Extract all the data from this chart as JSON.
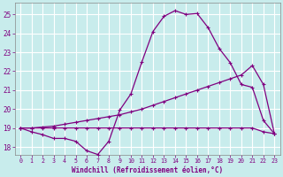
{
  "xlabel": "Windchill (Refroidissement éolien,°C)",
  "bg_color": "#c8ecec",
  "line_color": "#800080",
  "grid_color": "#b0d8d8",
  "xmin": -0.5,
  "xmax": 23.5,
  "ymin": 17.6,
  "ymax": 25.6,
  "yticks": [
    18,
    19,
    20,
    21,
    22,
    23,
    24,
    25
  ],
  "xticks": [
    0,
    1,
    2,
    3,
    4,
    5,
    6,
    7,
    8,
    9,
    10,
    11,
    12,
    13,
    14,
    15,
    16,
    17,
    18,
    19,
    20,
    21,
    22,
    23
  ],
  "line1_x": [
    0,
    1,
    2,
    3,
    4,
    5,
    6,
    7,
    8,
    9,
    10,
    11,
    12,
    13,
    14,
    15,
    16,
    17,
    18,
    19,
    20,
    21,
    22,
    23
  ],
  "line1_y": [
    19.0,
    18.8,
    18.65,
    18.45,
    18.45,
    18.3,
    17.8,
    17.6,
    18.3,
    19.95,
    20.8,
    22.5,
    24.1,
    24.9,
    25.2,
    25.0,
    25.05,
    24.3,
    23.2,
    22.45,
    21.3,
    21.15,
    19.4,
    18.7
  ],
  "line2_x": [
    0,
    1,
    2,
    3,
    4,
    5,
    6,
    7,
    8,
    9,
    10,
    11,
    12,
    13,
    14,
    15,
    16,
    17,
    18,
    19,
    20,
    21,
    22,
    23
  ],
  "line2_y": [
    19.0,
    19.0,
    19.05,
    19.1,
    19.2,
    19.3,
    19.4,
    19.5,
    19.6,
    19.7,
    19.85,
    20.0,
    20.2,
    20.4,
    20.6,
    20.8,
    21.0,
    21.2,
    21.4,
    21.6,
    21.8,
    22.3,
    21.3,
    18.7
  ],
  "line3_x": [
    0,
    1,
    2,
    3,
    4,
    5,
    6,
    7,
    8,
    9,
    10,
    11,
    12,
    13,
    14,
    15,
    16,
    17,
    18,
    19,
    20,
    21,
    22,
    23
  ],
  "line3_y": [
    19.0,
    19.0,
    19.0,
    19.0,
    19.0,
    19.0,
    19.0,
    19.0,
    19.0,
    19.0,
    19.0,
    19.0,
    19.0,
    19.0,
    19.0,
    19.0,
    19.0,
    19.0,
    19.0,
    19.0,
    19.0,
    19.0,
    18.8,
    18.7
  ]
}
